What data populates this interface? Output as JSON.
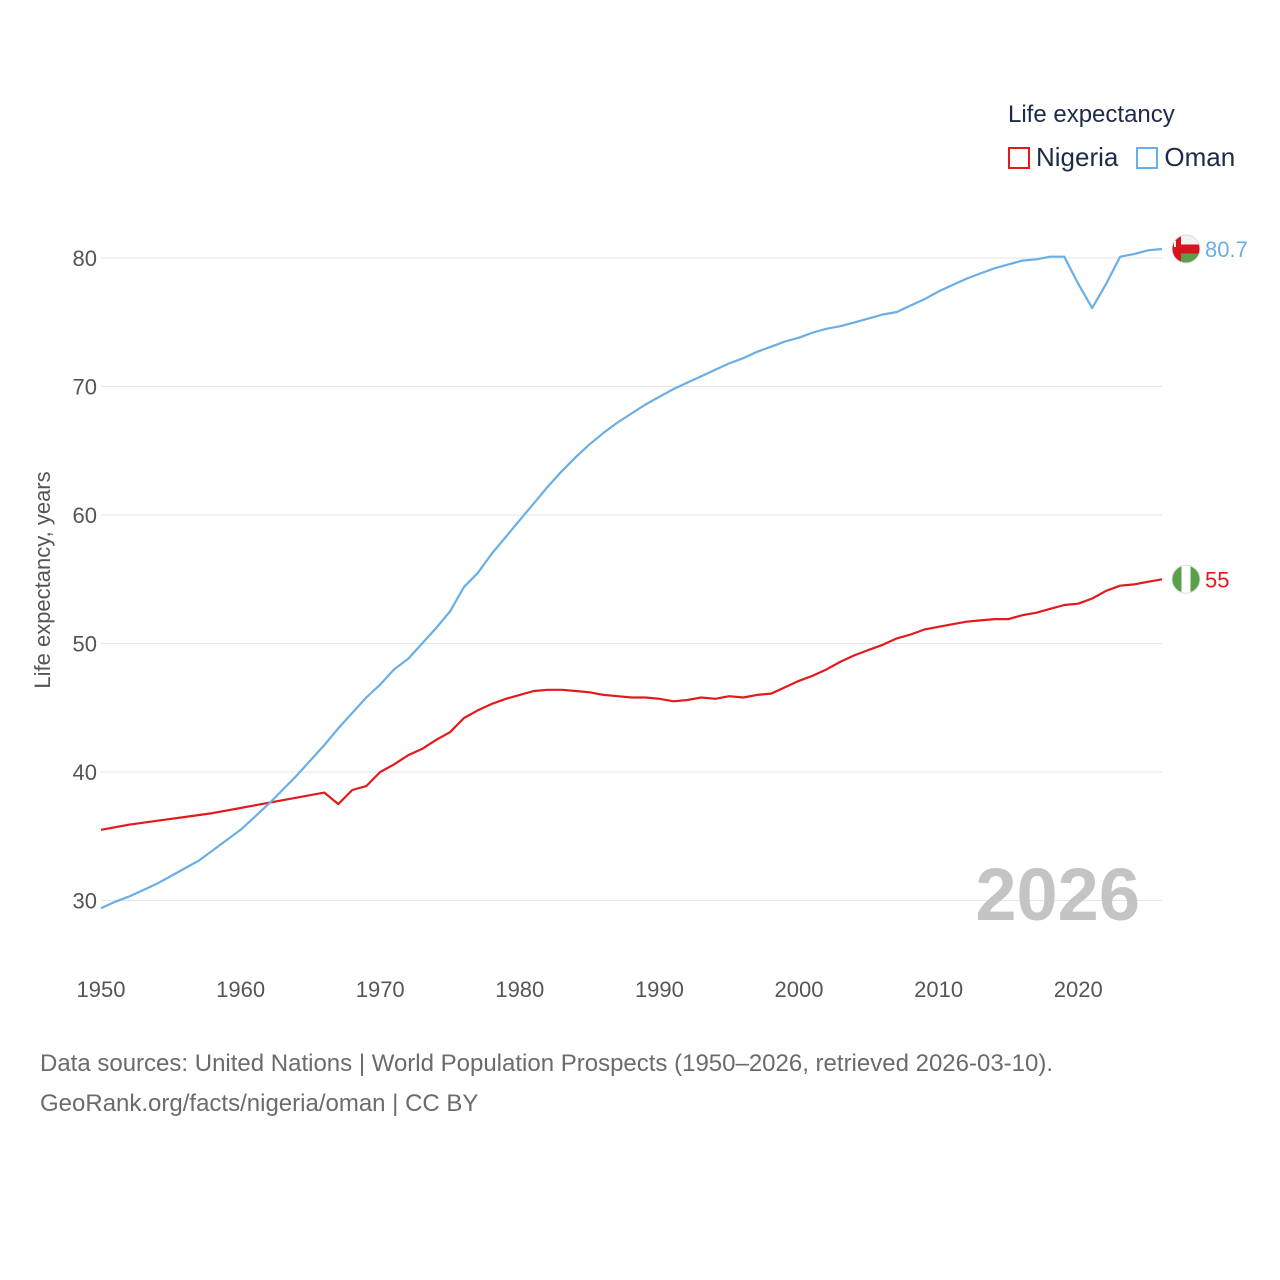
{
  "legend": {
    "title": "Life expectancy",
    "items": [
      {
        "name": "Nigeria",
        "color": "#e3191c"
      },
      {
        "name": "Oman",
        "color": "#6aaee6"
      }
    ]
  },
  "watermark_year": "2026",
  "source": {
    "line1": "Data sources: United Nations | World Population Prospects (1950–2026, retrieved 2026-03-10).",
    "line2": "GeoRank.org/facts/nigeria/oman | CC BY"
  },
  "chart_data": {
    "type": "line",
    "title": "Life expectancy",
    "xlabel": "",
    "ylabel": "Life expectancy, years",
    "xlim": [
      1950,
      2026
    ],
    "ylim": [
      25,
      85
    ],
    "x_ticks": [
      1950,
      1960,
      1970,
      1980,
      1990,
      2000,
      2010,
      2020
    ],
    "y_ticks": [
      30,
      40,
      50,
      60,
      70,
      80
    ],
    "grid": true,
    "legend_position": "top-right",
    "series": [
      {
        "name": "Nigeria",
        "color": "#e3191c",
        "end_label": "55",
        "points": [
          [
            1950,
            35.5
          ],
          [
            1952,
            35.9
          ],
          [
            1954,
            36.2
          ],
          [
            1956,
            36.5
          ],
          [
            1958,
            36.8
          ],
          [
            1960,
            37.2
          ],
          [
            1962,
            37.6
          ],
          [
            1964,
            38.0
          ],
          [
            1966,
            38.4
          ],
          [
            1967,
            37.5
          ],
          [
            1968,
            38.6
          ],
          [
            1969,
            38.9
          ],
          [
            1970,
            40.0
          ],
          [
            1971,
            40.6
          ],
          [
            1972,
            41.3
          ],
          [
            1973,
            41.8
          ],
          [
            1974,
            42.5
          ],
          [
            1975,
            43.1
          ],
          [
            1976,
            44.2
          ],
          [
            1977,
            44.8
          ],
          [
            1978,
            45.3
          ],
          [
            1979,
            45.7
          ],
          [
            1980,
            46.0
          ],
          [
            1981,
            46.3
          ],
          [
            1982,
            46.4
          ],
          [
            1983,
            46.4
          ],
          [
            1984,
            46.3
          ],
          [
            1985,
            46.2
          ],
          [
            1986,
            46.0
          ],
          [
            1987,
            45.9
          ],
          [
            1988,
            45.8
          ],
          [
            1989,
            45.8
          ],
          [
            1990,
            45.7
          ],
          [
            1991,
            45.5
          ],
          [
            1992,
            45.6
          ],
          [
            1993,
            45.8
          ],
          [
            1994,
            45.7
          ],
          [
            1995,
            45.9
          ],
          [
            1996,
            45.8
          ],
          [
            1997,
            46.0
          ],
          [
            1998,
            46.1
          ],
          [
            1999,
            46.6
          ],
          [
            2000,
            47.1
          ],
          [
            2001,
            47.5
          ],
          [
            2002,
            48.0
          ],
          [
            2003,
            48.6
          ],
          [
            2004,
            49.1
          ],
          [
            2005,
            49.5
          ],
          [
            2006,
            49.9
          ],
          [
            2007,
            50.4
          ],
          [
            2008,
            50.7
          ],
          [
            2009,
            51.1
          ],
          [
            2010,
            51.3
          ],
          [
            2011,
            51.5
          ],
          [
            2012,
            51.7
          ],
          [
            2013,
            51.8
          ],
          [
            2014,
            51.9
          ],
          [
            2015,
            51.9
          ],
          [
            2016,
            52.2
          ],
          [
            2017,
            52.4
          ],
          [
            2018,
            52.7
          ],
          [
            2019,
            53.0
          ],
          [
            2020,
            53.1
          ],
          [
            2021,
            53.5
          ],
          [
            2022,
            54.1
          ],
          [
            2023,
            54.5
          ],
          [
            2024,
            54.6
          ],
          [
            2025,
            54.8
          ],
          [
            2026,
            55.0
          ]
        ]
      },
      {
        "name": "Oman",
        "color": "#6aaee6",
        "end_label": "80.7",
        "points": [
          [
            1950,
            29.4
          ],
          [
            1951,
            29.9
          ],
          [
            1952,
            30.3
          ],
          [
            1953,
            30.8
          ],
          [
            1954,
            31.3
          ],
          [
            1955,
            31.9
          ],
          [
            1956,
            32.5
          ],
          [
            1957,
            33.1
          ],
          [
            1958,
            33.9
          ],
          [
            1959,
            34.7
          ],
          [
            1960,
            35.5
          ],
          [
            1961,
            36.5
          ],
          [
            1962,
            37.5
          ],
          [
            1963,
            38.6
          ],
          [
            1964,
            39.7
          ],
          [
            1965,
            40.9
          ],
          [
            1966,
            42.1
          ],
          [
            1967,
            43.4
          ],
          [
            1968,
            44.6
          ],
          [
            1969,
            45.8
          ],
          [
            1970,
            46.8
          ],
          [
            1971,
            48.0
          ],
          [
            1972,
            48.8
          ],
          [
            1973,
            50.0
          ],
          [
            1974,
            51.2
          ],
          [
            1975,
            52.5
          ],
          [
            1976,
            54.4
          ],
          [
            1977,
            55.5
          ],
          [
            1978,
            57.0
          ],
          [
            1979,
            58.3
          ],
          [
            1980,
            59.6
          ],
          [
            1981,
            60.9
          ],
          [
            1982,
            62.2
          ],
          [
            1983,
            63.4
          ],
          [
            1984,
            64.5
          ],
          [
            1985,
            65.5
          ],
          [
            1986,
            66.4
          ],
          [
            1987,
            67.2
          ],
          [
            1988,
            67.9
          ],
          [
            1989,
            68.6
          ],
          [
            1990,
            69.2
          ],
          [
            1991,
            69.8
          ],
          [
            1992,
            70.3
          ],
          [
            1993,
            70.8
          ],
          [
            1994,
            71.3
          ],
          [
            1995,
            71.8
          ],
          [
            1996,
            72.2
          ],
          [
            1997,
            72.7
          ],
          [
            1998,
            73.1
          ],
          [
            1999,
            73.5
          ],
          [
            2000,
            73.8
          ],
          [
            2001,
            74.2
          ],
          [
            2002,
            74.5
          ],
          [
            2003,
            74.7
          ],
          [
            2004,
            75.0
          ],
          [
            2005,
            75.3
          ],
          [
            2006,
            75.6
          ],
          [
            2007,
            75.8
          ],
          [
            2008,
            76.3
          ],
          [
            2009,
            76.8
          ],
          [
            2010,
            77.4
          ],
          [
            2011,
            77.9
          ],
          [
            2012,
            78.4
          ],
          [
            2013,
            78.8
          ],
          [
            2014,
            79.2
          ],
          [
            2015,
            79.5
          ],
          [
            2016,
            79.8
          ],
          [
            2017,
            79.9
          ],
          [
            2018,
            80.1
          ],
          [
            2019,
            80.1
          ],
          [
            2020,
            78.0
          ],
          [
            2021,
            76.1
          ],
          [
            2022,
            78.0
          ],
          [
            2023,
            80.1
          ],
          [
            2024,
            80.3
          ],
          [
            2025,
            80.6
          ],
          [
            2026,
            80.7
          ]
        ]
      }
    ]
  }
}
